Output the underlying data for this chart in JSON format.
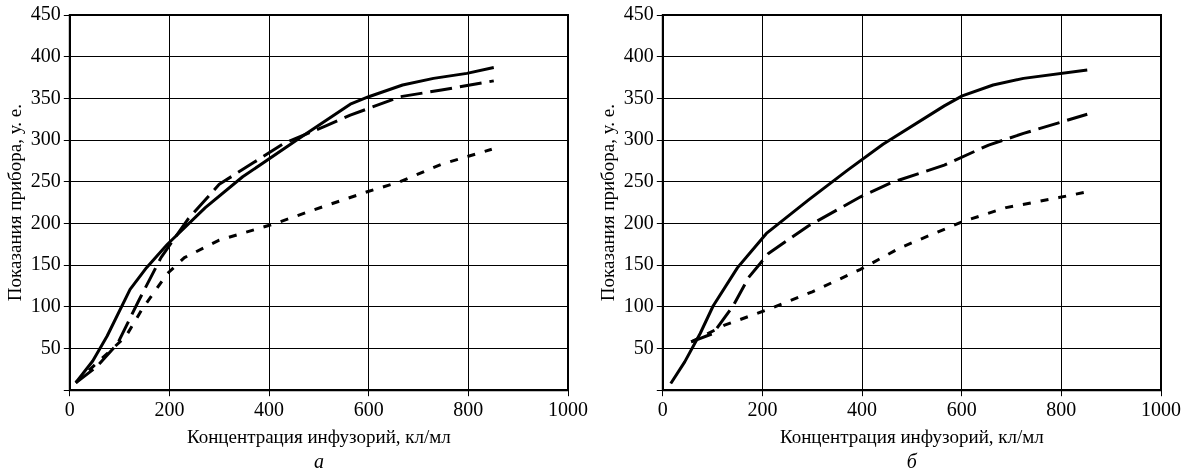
{
  "chart_data": [
    {
      "type": "line",
      "xlabel": "Концентрация инфузорий, кл/мл",
      "ylabel": "Показания прибора, у. е.",
      "annotations": [
        "а"
      ],
      "xlim": [
        0,
        1000
      ],
      "xticks": [
        0,
        200,
        400,
        600,
        800,
        1000
      ],
      "ylim": [
        0,
        450
      ],
      "yticks": [
        {
          "value": 0,
          "label": null
        },
        50,
        100,
        150,
        200,
        250,
        300,
        350,
        400,
        450
      ],
      "grid": true,
      "legend": false,
      "marker": "none",
      "series": [
        {
          "color": "#000000",
          "line_style": "solid",
          "x": [
            12,
            46,
            75,
            121,
            154,
            196,
            272,
            347,
            463,
            563,
            600,
            668,
            730,
            797,
            851
          ],
          "values": [
            9,
            35,
            65,
            121,
            147,
            175,
            219,
            256,
            303,
            343,
            352,
            366,
            374,
            380,
            387
          ]
        },
        {
          "color": "#000000",
          "line_style": "dashed",
          "x": [
            12,
            54,
            96,
            138,
            183,
            237,
            300,
            430,
            514,
            563,
            600,
            663,
            746,
            851
          ],
          "values": [
            9,
            28,
            56,
            107,
            159,
            205,
            247,
            296,
            317,
            330,
            338,
            352,
            360,
            371
          ]
        },
        {
          "color": "#000000",
          "line_style": "dotted",
          "x": [
            12,
            46,
            88,
            113,
            146,
            196,
            230,
            300,
            413,
            488,
            597,
            663,
            746,
            847
          ],
          "values": [
            9,
            28,
            51,
            65,
            98,
            140,
            159,
            180,
            200,
            216,
            238,
            250,
            271,
            289
          ]
        }
      ]
    },
    {
      "type": "line",
      "xlabel": "Концентрация инфузорий, кл/мл",
      "ylabel": "Показания прибора, у. е.",
      "annotations": [
        "б"
      ],
      "xlim": [
        0,
        1000
      ],
      "xticks": [
        0,
        200,
        400,
        600,
        800,
        1000
      ],
      "ylim": [
        0,
        450
      ],
      "yticks": [
        {
          "value": 0,
          "label": null
        },
        50,
        100,
        150,
        200,
        250,
        300,
        350,
        400,
        450
      ],
      "grid": true,
      "legend": false,
      "marker": "none",
      "series": [
        {
          "color": "#000000",
          "line_style": "solid",
          "x": [
            16,
            44,
            75,
            101,
            150,
            208,
            292,
            371,
            442,
            565,
            601,
            663,
            724,
            852
          ],
          "values": [
            8,
            34,
            68,
            101,
            147,
            188,
            228,
            264,
            295,
            341,
            353,
            366,
            374,
            384
          ]
        },
        {
          "color": "#000000",
          "line_style": "dashed",
          "x": [
            57,
            101,
            141,
            172,
            212,
            292,
            397,
            459,
            565,
            654,
            724,
            852
          ],
          "values": [
            58,
            68,
            101,
            135,
            164,
            197,
            232,
            249,
            270,
            294,
            308,
            331
          ]
        },
        {
          "color": "#000000",
          "line_style": "dotted",
          "x": [
            57,
            124,
            212,
            300,
            397,
            477,
            601,
            689,
            795,
            852
          ],
          "values": [
            58,
            78,
            97,
            118,
            145,
            171,
            202,
            219,
            231,
            238
          ]
        }
      ]
    }
  ]
}
